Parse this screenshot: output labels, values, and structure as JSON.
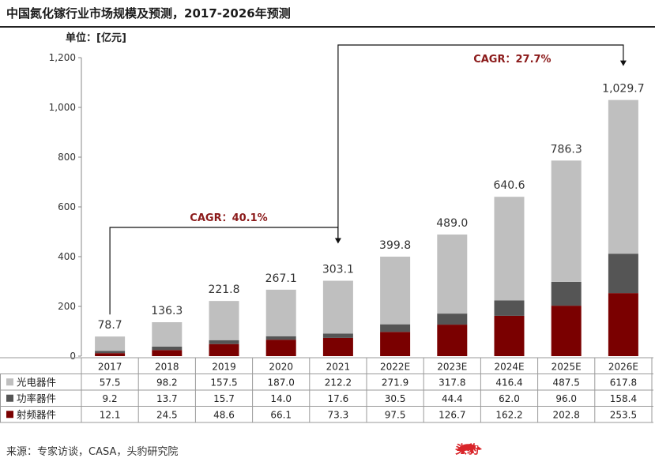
{
  "title": "中国氮化镓行业市场规模及预测，2017-2026年预测",
  "unit_label": "单位：[亿元]",
  "source": "来源：专家访谈，CASA，头豹研究院",
  "logo_text": "头豹",
  "chart_data": {
    "type": "bar",
    "stacked": true,
    "categories": [
      "2017",
      "2018",
      "2019",
      "2020",
      "2021",
      "2022E",
      "2023E",
      "2024E",
      "2025E",
      "2026E"
    ],
    "series": [
      {
        "name": "射频器件",
        "color": "#7a0000",
        "values": [
          12.1,
          24.5,
          48.6,
          66.1,
          73.3,
          97.5,
          126.7,
          162.2,
          202.8,
          253.5
        ],
        "labels": [
          "12.1",
          "24.5",
          "48.6",
          "66.1",
          "73.3",
          "97.5",
          "126.7",
          "162.2",
          "202.8",
          "253.5"
        ]
      },
      {
        "name": "功率器件",
        "color": "#555555",
        "values": [
          9.2,
          13.7,
          15.7,
          14.0,
          17.6,
          30.5,
          44.4,
          62.0,
          96.0,
          158.4
        ],
        "labels": [
          "9.2",
          "13.7",
          "15.7",
          "14.0",
          "17.6",
          "30.5",
          "44.4",
          "62.0",
          "96.0",
          "158.4"
        ]
      },
      {
        "name": "光电器件",
        "color": "#bfbfbf",
        "values": [
          57.5,
          98.2,
          157.5,
          187.0,
          212.2,
          271.9,
          317.8,
          416.4,
          487.5,
          617.8
        ],
        "labels": [
          "57.5",
          "98.2",
          "157.5",
          "187.0",
          "212.2",
          "271.9",
          "317.8",
          "416.4",
          "487.5",
          "617.8"
        ]
      }
    ],
    "table_rows": [
      "光电器件",
      "功率器件",
      "射频器件"
    ],
    "totals": [
      "78.7",
      "136.3",
      "221.8",
      "267.1",
      "303.1",
      "399.8",
      "489.0",
      "640.6",
      "786.3",
      "1,029.7"
    ],
    "ylim": [
      0,
      1200
    ],
    "yticks": [
      0,
      200,
      400,
      600,
      800,
      1000,
      1200
    ],
    "ytick_labels": [
      "0",
      "200",
      "400",
      "600",
      "800",
      "1,000",
      "1,200"
    ],
    "grid": false,
    "annotations": [
      {
        "text": "CAGR：40.1%",
        "from": "2017",
        "to": "2021"
      },
      {
        "text": "CAGR：27.7%",
        "from": "2021",
        "to": "2026E"
      }
    ]
  }
}
